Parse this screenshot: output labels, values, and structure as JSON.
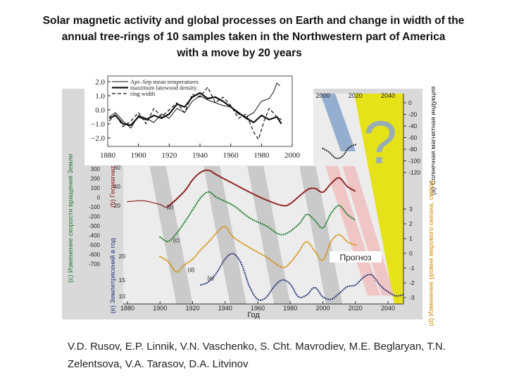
{
  "slide": {
    "title_lines": [
      "Solar magnetic activity and global processes on Earth and change in width of the",
      "annual tree-rings of 10 samples taken in the Northwestern part of America",
      "with a move by 20 years"
    ],
    "authors": "V.D. Rusov, E.P. Linnik, V.N. Vaschenko, S. Cht. Mavrodiev, M.E. Beglaryan, T.N. Zelentsova, V.A. Tarasov, D.A. Litvinov"
  },
  "chart_data": [
    {
      "type": "line",
      "panel": "inset",
      "x_ticks": [
        1880,
        1900,
        1920,
        1940,
        1960,
        1980,
        2000
      ],
      "y_ticks": [
        "2.0",
        "1.0",
        "0.0",
        "−1.0",
        "−2.0"
      ],
      "xlim": [
        1880,
        2000
      ],
      "ylim": [
        -2.6,
        2.4
      ],
      "legend_position": "top-left",
      "series": [
        {
          "name": "Apr–Sep mean temperatures",
          "style": "thin",
          "x": [
            1881,
            1885,
            1890,
            1895,
            1900,
            1905,
            1910,
            1915,
            1920,
            1925,
            1930,
            1935,
            1940,
            1945,
            1950,
            1955,
            1960,
            1965,
            1970,
            1975,
            1980,
            1985,
            1988,
            1990,
            1992
          ],
          "y": [
            -0.5,
            -0.2,
            -0.8,
            -1.3,
            -0.4,
            -0.6,
            -0.9,
            -0.3,
            -0.6,
            0.1,
            -0.2,
            0.6,
            1.0,
            0.7,
            0.5,
            0.3,
            0.2,
            -0.3,
            -0.5,
            -0.2,
            0.6,
            0.8,
            1.3,
            1.9,
            1.7
          ]
        },
        {
          "name": "maximum latewood density",
          "style": "thick",
          "x": [
            1881,
            1885,
            1890,
            1895,
            1900,
            1905,
            1910,
            1915,
            1920,
            1925,
            1930,
            1935,
            1940,
            1945,
            1950,
            1955,
            1960,
            1965,
            1970,
            1975,
            1980,
            1985,
            1990,
            1993
          ],
          "y": [
            -0.6,
            -0.4,
            -1.0,
            -1.1,
            -0.5,
            -0.7,
            -0.4,
            -0.6,
            -0.3,
            0.4,
            0.2,
            0.9,
            1.2,
            0.8,
            0.9,
            0.6,
            0.2,
            -0.2,
            -0.6,
            -0.9,
            -0.4,
            -0.7,
            -0.5,
            -1.0
          ]
        },
        {
          "name": "ring width",
          "style": "dashed",
          "x": [
            1881,
            1885,
            1890,
            1895,
            1900,
            1905,
            1910,
            1915,
            1920,
            1925,
            1930,
            1935,
            1940,
            1945,
            1950,
            1955,
            1960,
            1965,
            1970,
            1975,
            1978,
            1982,
            1985,
            1990,
            1993
          ],
          "y": [
            -0.8,
            -0.3,
            -1.2,
            -0.8,
            -0.2,
            -1.0,
            0.1,
            -0.5,
            0.0,
            0.5,
            -0.2,
            1.1,
            0.9,
            1.6,
            0.5,
            0.9,
            0.3,
            -0.6,
            -0.3,
            -1.6,
            -2.1,
            -0.7,
            0.1,
            -0.5,
            -0.7
          ]
        }
      ]
    },
    {
      "type": "line",
      "panel": "main",
      "xlabel": "Год",
      "x_ticks": [
        1880,
        1900,
        1920,
        1940,
        1960,
        1980,
        2000,
        2020,
        2040
      ],
      "top_x_ticks": [
        2000,
        2020,
        2040
      ],
      "xlim": [
        1880,
        2050
      ],
      "annotation": "Прогноз",
      "question_mark": "?",
      "axes": {
        "a": {
          "label": "(a) Солнечная магнитная индукция",
          "ticks": [
            "0",
            "20",
            "40",
            "60",
            "80",
            "100",
            "120"
          ]
        },
        "b": {
          "label": "(b) Геомагнит",
          "ticks": [
            "60",
            "40",
            "20"
          ]
        },
        "c": {
          "label": "(c) Изменение скорости вращения Земли",
          "ticks": [
            "300",
            "200",
            "100",
            "0",
            "-100",
            "-200",
            "-300",
            "-400",
            "-500",
            "-600",
            "-700"
          ]
        },
        "d": {
          "label": "(d) Изменение уровня мирового океана, см/год",
          "ticks": [
            "3",
            "2",
            "1",
            "0",
            "-1",
            "-2",
            "-3"
          ]
        },
        "e": {
          "label": "(e) Землетрясений в год",
          "ticks": [
            "20",
            "15",
            "10"
          ]
        }
      },
      "series": [
        {
          "name": "(a)",
          "color": "#222222",
          "x": [
            2000,
            2004,
            2008,
            2012,
            2016,
            2020
          ],
          "y": [
            60,
            50,
            35,
            40,
            62,
            70
          ]
        },
        {
          "name": "(b)",
          "color": "#8b1a1a",
          "x": [
            1880,
            1890,
            1900,
            1905,
            1915,
            1920,
            1925,
            1930,
            1935,
            1945,
            1955,
            1965,
            1975,
            1980,
            1990,
            1995,
            2000,
            2005,
            2010,
            2015,
            2020
          ],
          "y": [
            24,
            25,
            21,
            19,
            35,
            47,
            55,
            57,
            52,
            43,
            34,
            26,
            20,
            22,
            36,
            38,
            34,
            43,
            49,
            40,
            35
          ]
        },
        {
          "name": "(c)",
          "color": "#1e7a2e",
          "x": [
            1900,
            1905,
            1910,
            1915,
            1920,
            1925,
            1930,
            1935,
            1945,
            1955,
            1965,
            1975,
            1985,
            1990,
            1995,
            2000,
            2005,
            2010,
            2015,
            2020
          ],
          "y": [
            -230,
            -270,
            -200,
            -100,
            10,
            120,
            170,
            120,
            50,
            -60,
            -130,
            -210,
            -120,
            -30,
            -80,
            -150,
            -20,
            50,
            -30,
            -80
          ]
        },
        {
          "name": "(d)",
          "color": "#d48a00",
          "x": [
            1900,
            1905,
            1910,
            1915,
            1920,
            1925,
            1930,
            1935,
            1940,
            1945,
            1955,
            1965,
            1975,
            1980,
            1985,
            1990,
            1995,
            2000,
            2005,
            2010,
            2015,
            2020
          ],
          "y": [
            -0.3,
            -0.7,
            -1.6,
            -1.0,
            -0.5,
            0.3,
            1.0,
            1.8,
            2.3,
            1.4,
            0.5,
            -0.3,
            -1.2,
            -0.8,
            0.1,
            1.0,
            0.2,
            -0.6,
            1.0,
            1.6,
            1.0,
            0.7
          ]
        },
        {
          "name": "(e)",
          "color": "#2a3575",
          "x": [
            1925,
            1930,
            1935,
            1940,
            1945,
            1950,
            1955,
            1960,
            1965,
            1970,
            1975,
            1980,
            1985,
            1990,
            1995,
            2000,
            2005,
            2010,
            2015,
            2020,
            2025,
            2030,
            2035,
            2040,
            2045,
            2050
          ],
          "y": [
            15.0,
            15.4,
            16.5,
            18.1,
            18.7,
            17.5,
            14.8,
            13.3,
            13.5,
            14.8,
            15.6,
            15.1,
            13.6,
            13.8,
            14.7,
            13.6,
            13.3,
            14.0,
            14.8,
            15.0,
            15.9,
            16.2,
            15.0,
            14.2,
            13.7,
            13.9
          ]
        }
      ]
    }
  ]
}
